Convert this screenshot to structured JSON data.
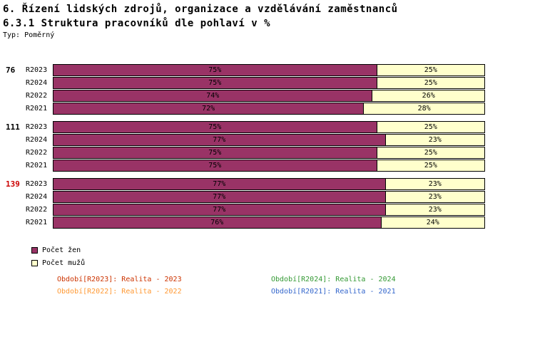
{
  "header": {
    "title_line1": "6. Řízení lidských zdrojů, organizace a vzdělávání zaměstnanců",
    "title_line2": "6.3.1 Struktura pracovníků dle pohlaví v %",
    "type_label": "Typ: Poměrný"
  },
  "colors": {
    "women_fill": "#993366",
    "men_fill": "#FFFFCC",
    "bar_border": "#000000",
    "group1_label_color": "#000000",
    "group2_label_color": "#000000",
    "group3_label_color": "#CC0000"
  },
  "chart_data": {
    "type": "bar",
    "orientation": "horizontal",
    "stacked": true,
    "unit": "%",
    "x_range": [
      0,
      100
    ],
    "series_names": [
      "Počet žen",
      "Počet mužů"
    ],
    "groups": [
      {
        "label": "76",
        "label_color": "#000000",
        "rows": [
          {
            "period": "R2023",
            "women": 75,
            "men": 25
          },
          {
            "period": "R2024",
            "women": 75,
            "men": 25
          },
          {
            "period": "R2022",
            "women": 74,
            "men": 26
          },
          {
            "period": "R2021",
            "women": 72,
            "men": 28
          }
        ]
      },
      {
        "label": "111",
        "label_color": "#000000",
        "rows": [
          {
            "period": "R2023",
            "women": 75,
            "men": 25
          },
          {
            "period": "R2024",
            "women": 77,
            "men": 23
          },
          {
            "period": "R2022",
            "women": 75,
            "men": 25
          },
          {
            "period": "R2021",
            "women": 75,
            "men": 25
          }
        ]
      },
      {
        "label": "139",
        "label_color": "#CC0000",
        "rows": [
          {
            "period": "R2023",
            "women": 77,
            "men": 23
          },
          {
            "period": "R2024",
            "women": 77,
            "men": 23
          },
          {
            "period": "R2022",
            "women": 77,
            "men": 23
          },
          {
            "period": "R2021",
            "women": 76,
            "men": 24
          }
        ]
      }
    ]
  },
  "legend": {
    "women_label": "Počet žen",
    "men_label": "Počet mužů"
  },
  "periods_legend": [
    {
      "label": "Období[R2023]: Realita - 2023",
      "color": "#CC3300"
    },
    {
      "label": "Období[R2024]: Realita - 2024",
      "color": "#339933"
    },
    {
      "label": "Období[R2022]: Realita - 2022",
      "color": "#FF9933"
    },
    {
      "label": "Období[R2021]: Realita - 2021",
      "color": "#3366CC"
    }
  ]
}
